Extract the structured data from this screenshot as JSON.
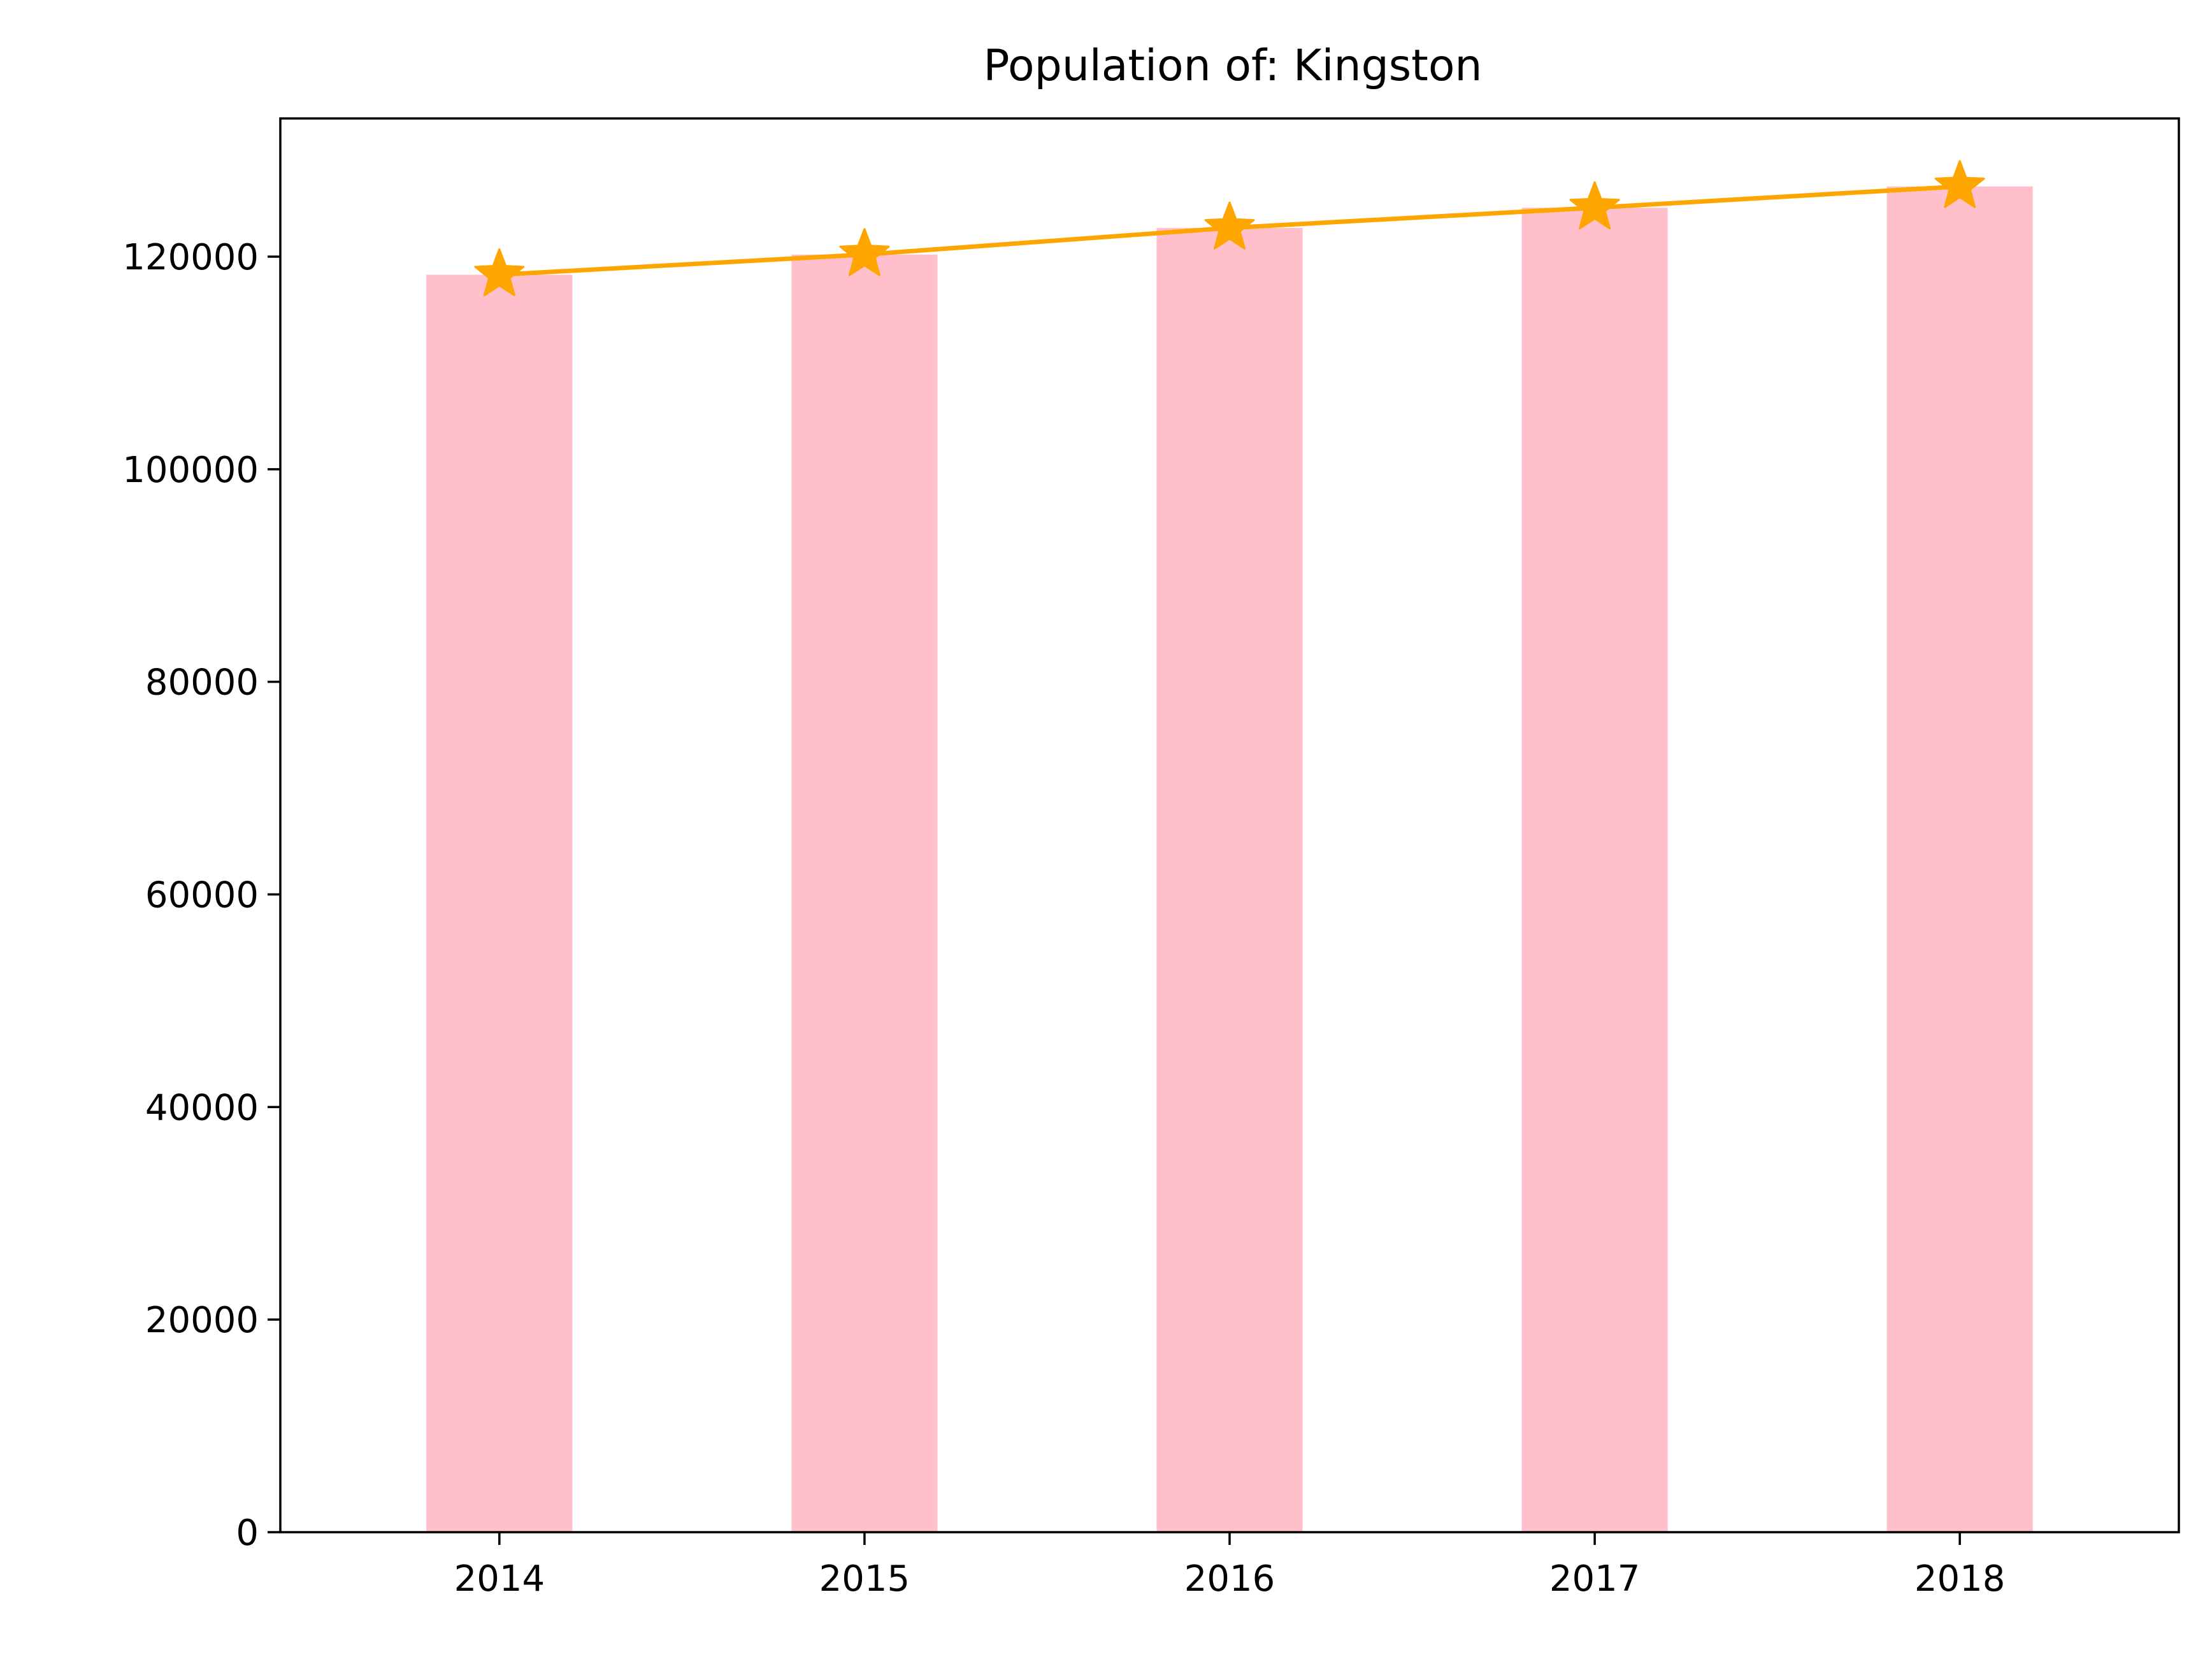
{
  "chart_data": {
    "type": "bar",
    "title": "Population of: Kingston",
    "xlabel": "",
    "ylabel": "",
    "categories": [
      "2014",
      "2015",
      "2016",
      "2017",
      "2018"
    ],
    "series": [
      {
        "type": "bar",
        "values": [
          118300,
          120200,
          122700,
          124600,
          126600
        ],
        "color": "#FFC0CB"
      },
      {
        "type": "line",
        "marker": "star",
        "values": [
          118300,
          120200,
          122700,
          124600,
          126600
        ],
        "color": "#FFA500"
      }
    ],
    "yticks": [
      "0",
      "20000",
      "40000",
      "60000",
      "80000",
      "100000",
      "120000"
    ],
    "ylim": [
      0,
      133000
    ],
    "grid": false,
    "legend": false
  }
}
